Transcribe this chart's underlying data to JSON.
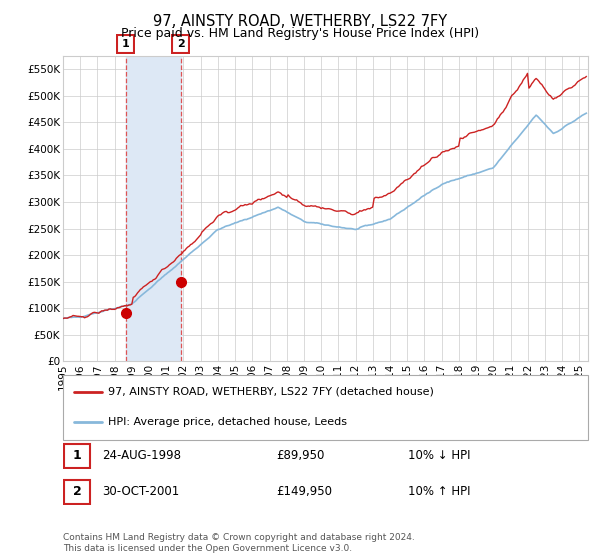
{
  "title": "97, AINSTY ROAD, WETHERBY, LS22 7FY",
  "subtitle": "Price paid vs. HM Land Registry's House Price Index (HPI)",
  "ylim": [
    0,
    575000
  ],
  "xlim_start": 1995.0,
  "xlim_end": 2025.5,
  "yticks": [
    0,
    50000,
    100000,
    150000,
    200000,
    250000,
    300000,
    350000,
    400000,
    450000,
    500000,
    550000
  ],
  "ytick_labels": [
    "£0",
    "£50K",
    "£100K",
    "£150K",
    "£200K",
    "£250K",
    "£300K",
    "£350K",
    "£400K",
    "£450K",
    "£500K",
    "£550K"
  ],
  "xtick_years": [
    1995,
    1996,
    1997,
    1998,
    1999,
    2000,
    2001,
    2002,
    2003,
    2004,
    2005,
    2006,
    2007,
    2008,
    2009,
    2010,
    2011,
    2012,
    2013,
    2014,
    2015,
    2016,
    2017,
    2018,
    2019,
    2020,
    2021,
    2022,
    2023,
    2024,
    2025
  ],
  "sale1_date": 1998.644,
  "sale1_price": 89950,
  "sale1_label": "1",
  "sale2_date": 2001.831,
  "sale2_price": 149950,
  "sale2_label": "2",
  "shade_color": "#dde8f5",
  "vline_color": "#d44",
  "hpi_color": "#87b8db",
  "price_color": "#cc2222",
  "dot_color": "#cc0000",
  "dot_size": 7,
  "legend_label1": "97, AINSTY ROAD, WETHERBY, LS22 7FY (detached house)",
  "legend_label2": "HPI: Average price, detached house, Leeds",
  "table_row1_num": "1",
  "table_row1_date": "24-AUG-1998",
  "table_row1_price": "£89,950",
  "table_row1_hpi": "10% ↓ HPI",
  "table_row2_num": "2",
  "table_row2_date": "30-OCT-2001",
  "table_row2_price": "£149,950",
  "table_row2_hpi": "10% ↑ HPI",
  "footnote": "Contains HM Land Registry data © Crown copyright and database right 2024.\nThis data is licensed under the Open Government Licence v3.0.",
  "grid_color": "#cccccc",
  "bg_color": "#ffffff",
  "title_fontsize": 10.5,
  "subtitle_fontsize": 9,
  "tick_fontsize": 7.5,
  "legend_fontsize": 8,
  "table_fontsize": 8.5,
  "footnote_fontsize": 6.5
}
